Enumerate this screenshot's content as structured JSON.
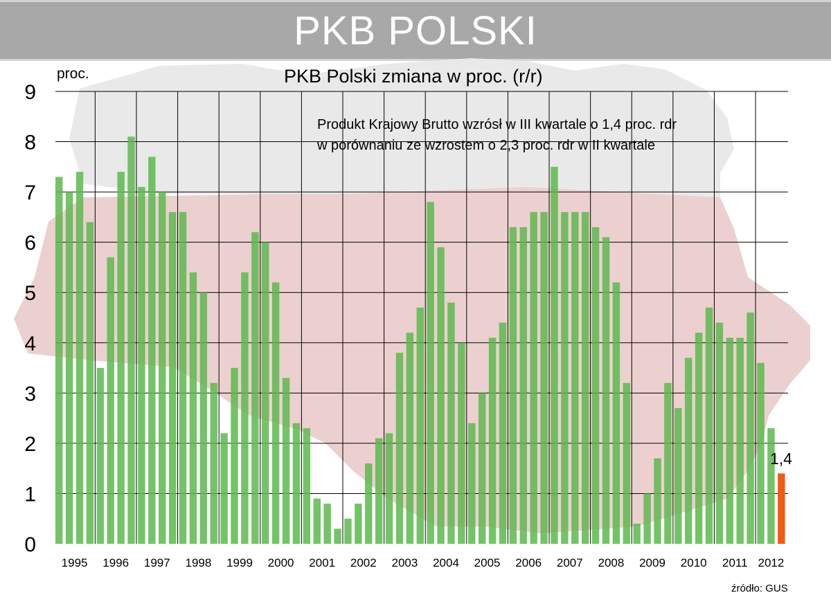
{
  "header": {
    "title": "PKB POLSKI"
  },
  "colors": {
    "bar": "#5db84e",
    "highlight_bar": "#f25c12",
    "title_bar": "#a8a8a8",
    "map_white": "#e9e9e9",
    "map_red": "#ecd0d0"
  },
  "chart_data": {
    "type": "bar",
    "title": "PKB Polski zmiana w proc. (r/r)",
    "ylabel": "proc.",
    "ylim": [
      0,
      9
    ],
    "yticks": [
      "0",
      "1",
      "2",
      "3",
      "4",
      "5",
      "6",
      "7",
      "8",
      "9"
    ],
    "grid": true,
    "annotation_lines": [
      "Produkt Krajowy Brutto wzrósł w III kwartale o 1,4 proc. rdr",
      "w porównaniu ze wzrostem o 2,3 proc. rdr w II kwartale"
    ],
    "x_labels": [
      "1995",
      "1996",
      "1997",
      "1998",
      "1999",
      "2000",
      "2001",
      "2002",
      "2003",
      "2004",
      "2005",
      "2006",
      "2007",
      "2008",
      "2009",
      "2010",
      "2011",
      "2012"
    ],
    "values": [
      7.3,
      7.0,
      7.4,
      6.4,
      3.5,
      5.7,
      7.4,
      8.1,
      7.1,
      7.7,
      7.0,
      6.6,
      6.6,
      5.4,
      5.0,
      3.2,
      2.2,
      3.5,
      5.4,
      6.2,
      6.0,
      5.2,
      3.3,
      2.4,
      2.3,
      0.9,
      0.8,
      0.3,
      0.5,
      0.8,
      1.6,
      2.1,
      2.2,
      3.8,
      4.2,
      4.7,
      6.8,
      5.9,
      4.8,
      4.0,
      2.4,
      3.0,
      4.1,
      4.4,
      6.3,
      6.3,
      6.6,
      6.6,
      7.5,
      6.6,
      6.6,
      6.6,
      6.3,
      6.1,
      5.2,
      3.2,
      0.4,
      1.0,
      1.7,
      3.2,
      2.7,
      3.7,
      4.2,
      4.7,
      4.4,
      4.1,
      4.1,
      4.6,
      3.6,
      2.3,
      1.4
    ],
    "highlight_label": "1,4",
    "source": "źródło: GUS"
  }
}
